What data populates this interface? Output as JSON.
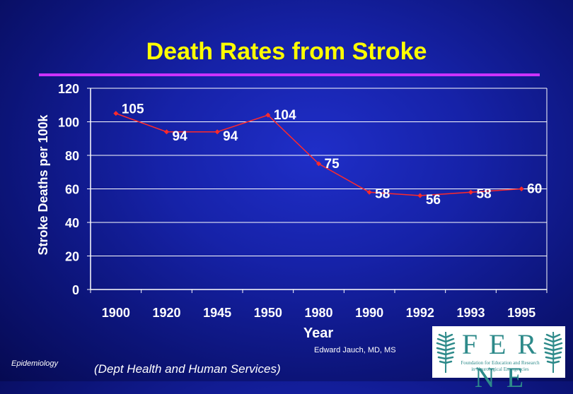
{
  "slide": {
    "title": "Death Rates from Stroke",
    "footer_left": "Epidemiology",
    "source": "(Dept Health and Human Services)",
    "author": "Edward Jauch, MD, MS",
    "logo": {
      "word": "FERNE",
      "subtitle_line1": "Foundation for Education and Research",
      "subtitle_line2": "in Neurological Emergencies"
    }
  },
  "colors": {
    "title": "#ffff00",
    "rule": "#cc33ff",
    "series": "#ff2a2a",
    "text": "#ffffff",
    "logo": "#2d8a8a"
  },
  "chart_data": {
    "type": "line",
    "title": "",
    "xlabel": "Year",
    "ylabel": "Stroke Deaths per 100k",
    "categories": [
      "1900",
      "1920",
      "1945",
      "1950",
      "1980",
      "1990",
      "1992",
      "1993",
      "1995"
    ],
    "series": [
      {
        "values": [
          105,
          94,
          94,
          104,
          75,
          58,
          56,
          58,
          60
        ]
      }
    ],
    "data_labels": [
      "105",
      "94",
      "94",
      "104",
      "75",
      "58",
      "56",
      "58",
      "60"
    ],
    "yticks": [
      "0",
      "20",
      "40",
      "60",
      "80",
      "100",
      "120"
    ],
    "ylim": [
      0,
      120
    ],
    "grid": true,
    "legend": "none"
  }
}
